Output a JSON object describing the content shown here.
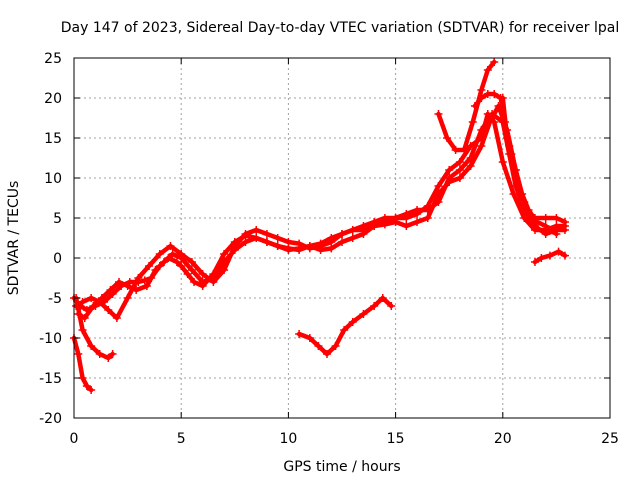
{
  "chart_data": {
    "type": "line",
    "title": "Day 147 of 2023, Sidereal Day-to-day VTEC variation (SDTVAR) for receiver lpal",
    "xlabel": "GPS time / hours",
    "ylabel": "SDTVAR / TECUs",
    "xlim": [
      0,
      25
    ],
    "ylim": [
      -20,
      25
    ],
    "xticks": [
      0,
      5,
      10,
      15,
      20,
      25
    ],
    "yticks": [
      -20,
      -15,
      -10,
      -5,
      0,
      5,
      10,
      15,
      20,
      25
    ],
    "grid": true,
    "color": "#ff0000",
    "marker": "plus",
    "series": [
      {
        "name": "trace-main-a",
        "x": [
          0.0,
          0.3,
          0.6,
          1.0,
          1.4,
          1.8,
          2.2,
          2.6,
          3.0,
          3.3,
          3.6,
          4.0,
          4.4,
          4.8,
          5.0,
          5.3,
          5.6,
          6.0,
          6.5,
          7.0,
          7.5,
          8.0,
          8.5,
          9.0,
          9.5,
          10.0,
          10.5,
          11.0,
          11.5,
          12.0,
          12.5,
          13.0,
          13.5,
          14.0,
          14.5,
          15.0,
          15.5,
          16.0,
          16.5,
          17.0,
          17.5,
          18.0,
          18.5,
          19.0,
          19.3,
          19.6,
          20.0,
          20.5,
          21.0,
          21.5,
          22.0,
          22.5,
          22.9
        ],
        "y": [
          -5,
          -6,
          -6.5,
          -6,
          -5.5,
          -4.5,
          -3.5,
          -3,
          -3,
          -2.8,
          -2.5,
          -1,
          0,
          -0.5,
          -1,
          -2,
          -3,
          -3.5,
          -2,
          0.5,
          2,
          2.8,
          2.5,
          2,
          1.5,
          1.2,
          1,
          1.5,
          1.8,
          2.5,
          3,
          3.5,
          4,
          4.5,
          5,
          5,
          5,
          5.5,
          6.5,
          9,
          11,
          12,
          14,
          15,
          18,
          17,
          12,
          8,
          5,
          3.5,
          3.5,
          4,
          4
        ]
      },
      {
        "name": "trace-main-b",
        "x": [
          0.2,
          0.5,
          0.9,
          1.3,
          1.7,
          2.1,
          2.5,
          2.9,
          3.4,
          3.8,
          4.2,
          4.6,
          5.0,
          5.5,
          6.0,
          6.5,
          7.0,
          7.5,
          8.0,
          8.5,
          9.0,
          9.5,
          10.0,
          10.5,
          11.0,
          11.5,
          12.0,
          12.5,
          13.0,
          13.5,
          14.0,
          14.5,
          15.0,
          15.5,
          16.0,
          16.5,
          17.0,
          17.5,
          18.0,
          18.5,
          19.0,
          19.4,
          19.8,
          20.2,
          20.6,
          21.0,
          21.5,
          22.0,
          22.5,
          22.9
        ],
        "y": [
          -7,
          -7.5,
          -6,
          -5,
          -4,
          -3,
          -3.5,
          -4,
          -3.5,
          -1.5,
          -0.5,
          0.5,
          0,
          -1.5,
          -3,
          -2.5,
          -0.5,
          1,
          2,
          2.5,
          2,
          1.5,
          1,
          1.2,
          1.5,
          1,
          1.2,
          2,
          2.5,
          3,
          4,
          4.2,
          4.5,
          4,
          4.5,
          5,
          8,
          9.5,
          10,
          11.5,
          14,
          17,
          19,
          16,
          11,
          6,
          4,
          3,
          3.5,
          3.5
        ]
      },
      {
        "name": "trace-main-c",
        "x": [
          0.1,
          0.4,
          0.8,
          1.2,
          1.6,
          2.0,
          2.5,
          3.0,
          3.5,
          4.0,
          4.5,
          5.0,
          5.5,
          6.0,
          6.5,
          7.0,
          7.5,
          8.0,
          8.5,
          9.0,
          9.5,
          10.0,
          10.5,
          11.0,
          11.5,
          12.0,
          12.5,
          13.0,
          13.5,
          14.0,
          14.5,
          15.0,
          15.5,
          16.0,
          16.5,
          17.0,
          17.5,
          18.0,
          18.5,
          19.0,
          19.5,
          20.0,
          20.3,
          20.6,
          21.0,
          21.5,
          22.0,
          22.5,
          22.9
        ],
        "y": [
          -6,
          -5.5,
          -5,
          -5.5,
          -6.5,
          -7.5,
          -5,
          -2.5,
          -1,
          0.5,
          1.5,
          0.5,
          -0.5,
          -2,
          -3,
          -1.5,
          1.5,
          3,
          3.5,
          3,
          2.5,
          2,
          1.8,
          1.2,
          1.5,
          2,
          3,
          3.5,
          3.5,
          4,
          4.5,
          5,
          5.5,
          6,
          6,
          7,
          10,
          11,
          12.5,
          16,
          18,
          17,
          13,
          9,
          6,
          5,
          5,
          5,
          4.5
        ]
      },
      {
        "name": "trace-hi-a",
        "x": [
          17.0,
          17.4,
          17.8,
          18.2,
          18.6,
          19.0,
          19.3,
          19.6
        ],
        "y": [
          18,
          15,
          13.5,
          13.5,
          17,
          21,
          23.5,
          24.5
        ]
      },
      {
        "name": "trace-hi-b",
        "x": [
          18.7,
          19.0,
          19.3,
          19.6,
          19.9,
          20.1,
          20.3,
          20.6,
          21.0
        ],
        "y": [
          19,
          20,
          20.5,
          20.5,
          20,
          17,
          14,
          10,
          7
        ]
      },
      {
        "name": "trace-hi-c",
        "x": [
          20.0,
          20.2,
          20.4,
          20.6,
          20.9,
          21.2,
          21.6,
          22.0,
          22.5
        ],
        "y": [
          20,
          15,
          13,
          11,
          8,
          6,
          4.5,
          4,
          3
        ]
      },
      {
        "name": "trace-drop-a",
        "x": [
          0.0,
          0.2,
          0.4,
          0.6,
          0.8
        ],
        "y": [
          -10,
          -12,
          -15,
          -16,
          -16.5
        ]
      },
      {
        "name": "trace-drop-b",
        "x": [
          0.1,
          0.4,
          0.8,
          1.2,
          1.6,
          1.8
        ],
        "y": [
          -5,
          -9,
          -11,
          -12,
          -12.5,
          -12
        ]
      },
      {
        "name": "trace-mid-low",
        "x": [
          10.5,
          11.0,
          11.4,
          11.8,
          12.2,
          12.6,
          13.0,
          13.5,
          14.0,
          14.4,
          14.8
        ],
        "y": [
          -9.5,
          -10,
          -11,
          -12,
          -11,
          -9,
          -8,
          -7,
          -6,
          -5,
          -6
        ]
      },
      {
        "name": "trace-late-low",
        "x": [
          21.5,
          21.8,
          22.2,
          22.6,
          22.9
        ],
        "y": [
          -0.5,
          0,
          0.3,
          0.8,
          0.3
        ]
      }
    ]
  }
}
